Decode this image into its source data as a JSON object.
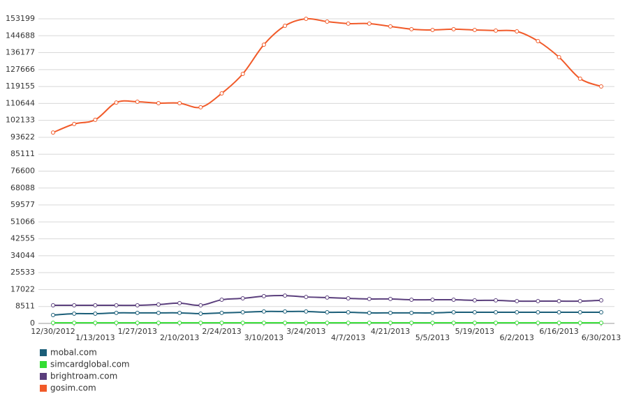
{
  "chart_data": {
    "type": "line",
    "categories": [
      "12/30/2012",
      null,
      "1/13/2013",
      null,
      "1/27/2013",
      null,
      "2/10/2013",
      null,
      "2/24/2013",
      null,
      "3/10/2013",
      null,
      "3/24/2013",
      null,
      "4/7/2013",
      null,
      "4/21/2013",
      null,
      "5/5/2013",
      null,
      "5/19/2013",
      null,
      "6/2/2013",
      null,
      "6/16/2013",
      null,
      "6/30/2013"
    ],
    "series": [
      {
        "name": "mobal.com",
        "color": "#1b5e78",
        "values": [
          4200,
          4900,
          4900,
          5300,
          5300,
          5300,
          5300,
          4900,
          5300,
          5600,
          6000,
          6000,
          6000,
          5600,
          5600,
          5300,
          5300,
          5300,
          5300,
          5600,
          5600,
          5600,
          5600,
          5600,
          5600,
          5600,
          5600
        ]
      },
      {
        "name": "simcardglobal.com",
        "color": "#33dd33",
        "values": [
          300,
          300,
          300,
          300,
          300,
          300,
          300,
          300,
          300,
          300,
          300,
          300,
          300,
          300,
          300,
          300,
          300,
          300,
          300,
          300,
          300,
          300,
          300,
          300,
          300,
          300,
          300
        ]
      },
      {
        "name": "brightroam.com",
        "color": "#5a3e7c",
        "values": [
          9100,
          9100,
          9100,
          9100,
          9100,
          9500,
          10200,
          9100,
          11900,
          12600,
          13700,
          14000,
          13300,
          13000,
          12600,
          12300,
          12300,
          11900,
          11900,
          11900,
          11600,
          11600,
          11200,
          11200,
          11200,
          11200,
          11600
        ]
      },
      {
        "name": "gosim.com",
        "color": "#f15a29",
        "values": [
          96000,
          100300,
          102400,
          111100,
          111500,
          110800,
          110800,
          108700,
          115700,
          125500,
          140200,
          149700,
          153200,
          151800,
          150800,
          150800,
          149400,
          148000,
          147600,
          148000,
          147600,
          147300,
          146900,
          142000,
          133900,
          123100,
          119200
        ]
      }
    ],
    "ylim": [
      0,
      153199
    ],
    "yticks": [
      0,
      8511,
      17022,
      25533,
      34044,
      42555,
      51066,
      59577,
      68088,
      76600,
      85111,
      93622,
      102133,
      110644,
      119155,
      127666,
      136177,
      144688,
      153199
    ],
    "grid": true
  }
}
